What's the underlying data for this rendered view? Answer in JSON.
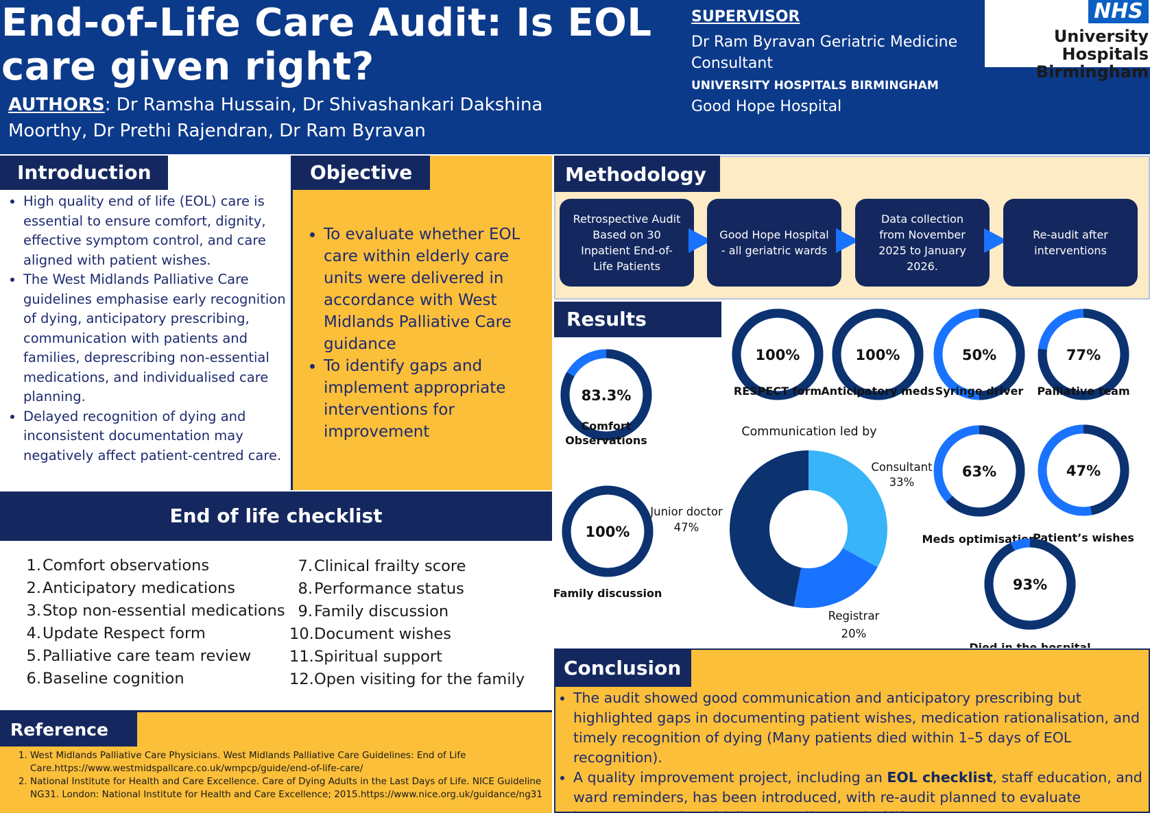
{
  "header": {
    "title": "End-of-Life Care Audit: Is EOL care given right?",
    "authors_label": "AUTHORS",
    "authors": ": Dr Ramsha Hussain, Dr Shivashankari Dakshina Moorthy,  Dr Prethi Rajendran, Dr Ram Byravan",
    "supervisor_label": "SUPERVISOR",
    "supervisor": "Dr Ram Byravan Geriatric Medicine Consultant",
    "institution_label": "UNIVERSITY HOSPITALS BIRMINGHAM",
    "institution": "Good Hope Hospital",
    "logo_badge": "NHS",
    "logo_line1": "University Hospitals",
    "logo_line2": "Birmingham"
  },
  "introduction": {
    "title": "Introduction",
    "bullets": [
      "High quality end of life (EOL) care is essential to ensure comfort, dignity, effective symptom control, and care aligned with patient wishes.",
      "The West Midlands Palliative Care guidelines emphasise early recognition of dying, anticipatory prescribing, communication with patients and families, deprescribing non-essential medications, and individualised care planning.",
      "Delayed recognition of dying and inconsistent documentation may negatively affect patient-centred care."
    ]
  },
  "objective": {
    "title": "Objective",
    "bullets": [
      "To evaluate whether EOL care within  elderly care units were delivered in accordance with West Midlands Palliative Care guidance",
      "To identify gaps and implement appropriate interventions for improvement"
    ]
  },
  "methodology": {
    "title": "Methodology",
    "steps": [
      "Retrospective Audit Based on 30 Inpatient End-of-Life Patients",
      "Good Hope Hospital - all geriatric wards",
      "Data collection from November 2025 to January 2026.",
      "Re-audit after interventions"
    ]
  },
  "results": {
    "title": "Results",
    "pie_title": "Communication led by"
  },
  "chart_data": [
    {
      "type": "pie",
      "categories": [
        "Comfort Observations",
        "RESPECT form",
        "Anticipatory meds",
        "Syringe driver",
        "Palliative team",
        "Family discussion",
        "Meds optimisation",
        "Patient’s wishes",
        "Died in the hospital"
      ],
      "values": [
        83.3,
        100,
        100,
        50,
        77,
        100,
        63,
        47,
        93
      ],
      "value_labels": [
        "83.3%",
        "100%",
        "100%",
        "50%",
        "77%",
        "100%",
        "63%",
        "47%",
        "93%"
      ],
      "title": ""
    },
    {
      "type": "pie",
      "title": "Communication led by",
      "categories": [
        "Consultant",
        "Registrar",
        "Junior doctor"
      ],
      "values": [
        33,
        20,
        47
      ],
      "value_labels": [
        "33%",
        "20%",
        "47%"
      ],
      "colors": [
        "#38b4f8",
        "#1a73ff",
        "#0c3270"
      ]
    }
  ],
  "checklist": {
    "title": "End of life checklist",
    "items": [
      "Comfort observations",
      "Anticipatory medications",
      "Stop non-essential medications",
      "Update Respect form",
      "Palliative care team review",
      "Baseline cognition",
      "Clinical frailty score",
      "Performance status",
      "Family discussion",
      "Document wishes",
      "Spiritual support",
      "Open visiting for the family"
    ]
  },
  "reference": {
    "title": "Reference",
    "items": [
      "West Midlands Palliative Care Physicians. West Midlands Palliative Care Guidelines: End of Life Care.https://www.westmidspallcare.co.uk/wmpcp/guide/end-of-life-care/",
      "National Institute for Health and Care Excellence. Care of Dying Adults in the Last Days of Life. NICE Guideline NG31. London: National Institute for Health and Care Excellence; 2015.https://www.nice.org.uk/guidance/ng31"
    ]
  },
  "conclusion": {
    "title": "Conclusion",
    "bullet1": "The audit showed good communication and anticipatory prescribing but highlighted gaps in documenting patient wishes, medication rationalisation, and timely recognition of dying (Many patients died within 1–5 days of EOL recognition).",
    "bullet2_pre": "A quality improvement project, including an ",
    "bullet2_bold": "EOL checklist",
    "bullet2_post": ", staff education, and ward reminders, has been introduced, with re-audit planned to evaluate improvements in guideline-compliant end-of-life care."
  },
  "colors": {
    "navy": "#14285f",
    "header_blue": "#0c3a8a",
    "amber": "#fbbf3a",
    "ring_dark": "#0c3270",
    "ring_light": "#1a73ff"
  }
}
